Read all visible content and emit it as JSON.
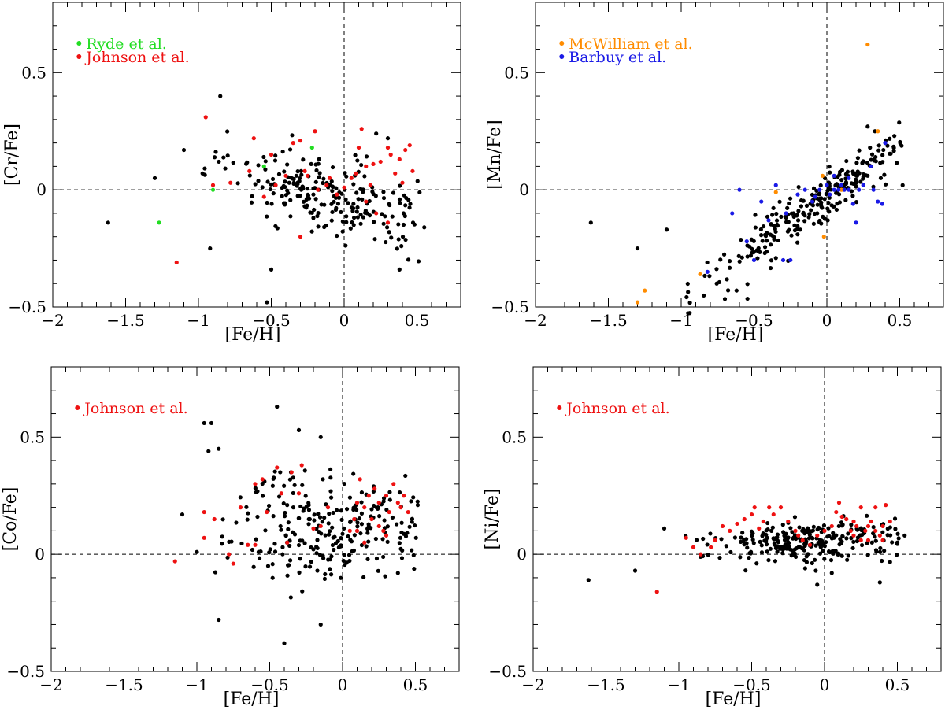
{
  "colors": {
    "axes": "#000000",
    "field_stars": "#000000",
    "ryde": "#22dd22",
    "johnson": "#ee1111",
    "mcwilliam": "#ff8c00",
    "barbuy": "#1a1ae6"
  },
  "chart_data": [
    {
      "type": "scatter",
      "panel": "top-left",
      "xlabel": "[Fe/H]",
      "ylabel": "[Cr/Fe]",
      "xlim": [
        -2.0,
        0.8
      ],
      "ylim": [
        -0.5,
        0.8
      ],
      "xticks": [
        -2,
        -1.5,
        -1,
        -0.5,
        0,
        0.5
      ],
      "xtick_labels": [
        "−2",
        "−1.5",
        "−1",
        "−0.5",
        "0",
        "0.5"
      ],
      "yticks": [
        -0.5,
        0,
        0.5
      ],
      "ytick_labels": [
        "−0.5",
        "0",
        "0.5"
      ],
      "reference_lines": {
        "x": 0,
        "y": 0
      },
      "legend": [
        "Ryde et al.",
        "Johnson et al."
      ],
      "series": [
        {
          "name": "",
          "color_key": "field_stars",
          "seed": 11,
          "n": 230,
          "x_center": -0.1,
          "x_spread": 0.34,
          "y_base": -0.04,
          "y_slope": -0.2,
          "y_spread": 0.085,
          "extra": [
            [
              -1.62,
              -0.14
            ],
            [
              -1.3,
              0.05
            ],
            [
              -1.1,
              0.17
            ],
            [
              -0.92,
              -0.25
            ],
            [
              -0.85,
              0.4
            ],
            [
              -0.5,
              -0.34
            ],
            [
              -0.53,
              -0.48
            ],
            [
              0.55,
              -0.16
            ],
            [
              0.38,
              -0.34
            ],
            [
              -0.86,
              0.12
            ],
            [
              0.22,
              0.24
            ],
            [
              0.3,
              0.22
            ]
          ]
        },
        {
          "name": "Ryde et al.",
          "color_key": "ryde",
          "points": [
            [
              -1.27,
              -0.14
            ],
            [
              -0.9,
              0.0
            ],
            [
              -0.22,
              0.18
            ],
            [
              -0.55,
              0.1
            ]
          ]
        },
        {
          "name": "Johnson et al.",
          "color_key": "johnson",
          "points": [
            [
              -1.15,
              -0.31
            ],
            [
              -0.95,
              0.31
            ],
            [
              -0.9,
              0.02
            ],
            [
              -0.78,
              0.03
            ],
            [
              -0.65,
              0.08
            ],
            [
              -0.62,
              0.22
            ],
            [
              -0.55,
              -0.03
            ],
            [
              -0.5,
              0.15
            ],
            [
              -0.47,
              0.02
            ],
            [
              -0.4,
              0.06
            ],
            [
              -0.35,
              0.2
            ],
            [
              -0.3,
              -0.2
            ],
            [
              -0.3,
              0.21
            ],
            [
              -0.27,
              0.08
            ],
            [
              -0.25,
              0.06
            ],
            [
              -0.2,
              0.25
            ],
            [
              -0.18,
              0.0
            ],
            [
              -0.12,
              0.02
            ],
            [
              -0.05,
              -0.02
            ],
            [
              0.0,
              0.01
            ],
            [
              0.05,
              0.05
            ],
            [
              0.08,
              0.07
            ],
            [
              0.1,
              0.18
            ],
            [
              0.12,
              0.26
            ],
            [
              0.15,
              0.1
            ],
            [
              0.18,
              0.02
            ],
            [
              0.2,
              0.11
            ],
            [
              0.25,
              0.12
            ],
            [
              0.3,
              -0.14
            ],
            [
              0.32,
              0.15
            ],
            [
              0.35,
              0.07
            ],
            [
              0.38,
              0.13
            ],
            [
              0.4,
              0.03
            ],
            [
              0.42,
              0.17
            ],
            [
              0.45,
              0.19
            ],
            [
              0.47,
              0.08
            ],
            [
              0.3,
              0.18
            ],
            [
              0.22,
              -0.1
            ],
            [
              -0.1,
              0.05
            ],
            [
              0.15,
              -0.05
            ]
          ]
        }
      ]
    },
    {
      "type": "scatter",
      "panel": "top-right",
      "xlabel": "[Fe/H]",
      "ylabel": "[Mn/Fe]",
      "xlim": [
        -2.0,
        0.8
      ],
      "ylim": [
        -0.5,
        0.8
      ],
      "xticks": [
        -2,
        -1.5,
        -1,
        -0.5,
        0,
        0.5
      ],
      "xtick_labels": [
        "−2",
        "−1.5",
        "−1",
        "−0.5",
        "0",
        "0.5"
      ],
      "yticks": [
        -0.5,
        0,
        0.5
      ],
      "ytick_labels": [
        "−0.5",
        "0",
        "0.5"
      ],
      "reference_lines": {
        "x": 0,
        "y": 0
      },
      "legend": [
        "McWilliam et al.",
        "Barbuy et al."
      ],
      "series": [
        {
          "name": "",
          "color_key": "field_stars",
          "seed": 23,
          "n": 260,
          "x_center": -0.1,
          "x_spread": 0.34,
          "y_base": -0.02,
          "y_slope": 0.45,
          "y_spread": 0.055,
          "extra": [
            [
              -1.62,
              -0.14
            ],
            [
              -1.3,
              -0.25
            ],
            [
              -1.1,
              -0.17
            ],
            [
              -0.62,
              -0.43
            ],
            [
              0.52,
              0.02
            ],
            [
              0.28,
              0.27
            ],
            [
              0.33,
              0.25
            ],
            [
              0.37,
              0.05
            ]
          ]
        },
        {
          "name": "McWilliam et al.",
          "color_key": "mcwilliam",
          "points": [
            [
              -1.3,
              -0.48
            ],
            [
              -1.25,
              -0.43
            ],
            [
              -0.87,
              -0.36
            ],
            [
              -0.35,
              -0.01
            ],
            [
              -0.03,
              0.06
            ],
            [
              -0.02,
              -0.2
            ],
            [
              0.28,
              0.62
            ],
            [
              0.35,
              0.25
            ],
            [
              0.1,
              0.0
            ]
          ]
        },
        {
          "name": "Barbuy et al.",
          "color_key": "barbuy",
          "points": [
            [
              -0.82,
              -0.35
            ],
            [
              -0.65,
              -0.1
            ],
            [
              -0.6,
              0.0
            ],
            [
              -0.55,
              -0.22
            ],
            [
              -0.5,
              -0.3
            ],
            [
              -0.45,
              -0.05
            ],
            [
              -0.4,
              -0.13
            ],
            [
              -0.35,
              0.02
            ],
            [
              -0.3,
              -0.3
            ],
            [
              -0.28,
              -0.1
            ],
            [
              -0.25,
              -0.3
            ],
            [
              -0.2,
              -0.02
            ],
            [
              -0.15,
              0.0
            ],
            [
              -0.1,
              -0.05
            ],
            [
              -0.05,
              0.0
            ],
            [
              0.0,
              0.02
            ],
            [
              0.02,
              -0.02
            ],
            [
              0.05,
              0.0
            ],
            [
              0.08,
              0.0
            ],
            [
              0.1,
              0.02
            ],
            [
              0.12,
              0.0
            ],
            [
              0.15,
              0.0
            ],
            [
              0.18,
              -0.06
            ],
            [
              0.2,
              -0.14
            ],
            [
              0.22,
              0.0
            ],
            [
              0.25,
              0.02
            ],
            [
              0.3,
              0.1
            ],
            [
              0.32,
              0.0
            ],
            [
              0.35,
              -0.05
            ],
            [
              0.38,
              -0.06
            ],
            [
              0.4,
              0.2
            ],
            [
              0.05,
              0.06
            ],
            [
              -0.08,
              -0.03
            ],
            [
              0.15,
              0.05
            ]
          ]
        }
      ]
    },
    {
      "type": "scatter",
      "panel": "bottom-left",
      "xlabel": "[Fe/H]",
      "ylabel": "[Co/Fe]",
      "xlim": [
        -2.0,
        0.8
      ],
      "ylim": [
        -0.5,
        0.8
      ],
      "xticks": [
        -2,
        -1.5,
        -1,
        -0.5,
        0,
        0.5
      ],
      "xtick_labels": [
        "−2",
        "−1.5",
        "−1",
        "−0.5",
        "0",
        "0.5"
      ],
      "yticks": [
        -0.5,
        0,
        0.5
      ],
      "ytick_labels": [
        "−0.5",
        "0",
        "0.5"
      ],
      "reference_lines": {
        "x": 0,
        "y": 0
      },
      "legend": [
        "Johnson et al."
      ],
      "series": [
        {
          "name": "",
          "color_key": "field_stars",
          "seed": 37,
          "n": 250,
          "x_center": -0.1,
          "x_spread": 0.34,
          "y_base": 0.12,
          "y_slope": 0.05,
          "y_spread": 0.12,
          "extra": [
            [
              -0.95,
              0.56
            ],
            [
              -0.9,
              0.56
            ],
            [
              -0.92,
              0.44
            ],
            [
              -0.85,
              0.45
            ],
            [
              -0.45,
              0.63
            ],
            [
              -0.3,
              0.53
            ],
            [
              -0.15,
              0.5
            ],
            [
              -0.85,
              -0.28
            ],
            [
              -0.4,
              -0.38
            ],
            [
              -0.15,
              -0.3
            ],
            [
              -1.1,
              0.17
            ],
            [
              -1.0,
              0.01
            ],
            [
              0.38,
              -0.08
            ]
          ]
        },
        {
          "name": "Johnson et al.",
          "color_key": "johnson",
          "points": [
            [
              -1.15,
              -0.03
            ],
            [
              -0.95,
              0.07
            ],
            [
              -0.95,
              0.18
            ],
            [
              -0.88,
              0.15
            ],
            [
              -0.78,
              0.0
            ],
            [
              -0.75,
              -0.04
            ],
            [
              -0.7,
              0.2
            ],
            [
              -0.65,
              0.04
            ],
            [
              -0.6,
              0.04
            ],
            [
              -0.6,
              0.3
            ],
            [
              -0.55,
              0.32
            ],
            [
              -0.52,
              0.18
            ],
            [
              -0.45,
              0.37
            ],
            [
              -0.42,
              0.26
            ],
            [
              -0.38,
              0.05
            ],
            [
              -0.35,
              0.35
            ],
            [
              -0.3,
              0.26
            ],
            [
              -0.28,
              0.38
            ],
            [
              -0.2,
              0.11
            ],
            [
              -0.15,
              0.12
            ],
            [
              -0.1,
              0.2
            ],
            [
              0.05,
              0.1
            ],
            [
              0.08,
              0.15
            ],
            [
              0.1,
              0.22
            ],
            [
              0.12,
              0.32
            ],
            [
              0.15,
              0.2
            ],
            [
              0.18,
              0.25
            ],
            [
              0.2,
              0.15
            ],
            [
              0.22,
              0.28
            ],
            [
              0.25,
              0.22
            ],
            [
              0.28,
              0.1
            ],
            [
              0.3,
              0.25
            ],
            [
              0.32,
              0.18
            ],
            [
              0.35,
              0.3
            ],
            [
              0.38,
              0.22
            ],
            [
              0.4,
              0.2
            ],
            [
              0.42,
              0.25
            ],
            [
              0.45,
              0.18
            ],
            [
              0.3,
              0.08
            ],
            [
              0.25,
              0.12
            ],
            [
              0.15,
              0.05
            ],
            [
              0.1,
              0.1
            ]
          ]
        }
      ]
    },
    {
      "type": "scatter",
      "panel": "bottom-right",
      "xlabel": "[Fe/H]",
      "ylabel": "[Ni/Fe]",
      "xlim": [
        -2.0,
        0.8
      ],
      "ylim": [
        -0.5,
        0.8
      ],
      "xticks": [
        -2,
        -1.5,
        -1,
        -0.5,
        0,
        0.5
      ],
      "xtick_labels": [
        "−2",
        "−1.5",
        "−1",
        "−0.5",
        "0",
        "0.5"
      ],
      "yticks": [
        -0.5,
        0,
        0.5
      ],
      "ytick_labels": [
        "−0.5",
        "0",
        "0.5"
      ],
      "reference_lines": {
        "x": 0,
        "y": 0
      },
      "legend": [
        "Johnson et al."
      ],
      "series": [
        {
          "name": "",
          "color_key": "field_stars",
          "seed": 53,
          "n": 260,
          "x_center": -0.1,
          "x_spread": 0.34,
          "y_base": 0.06,
          "y_slope": 0.04,
          "y_spread": 0.045,
          "extra": [
            [
              -1.62,
              -0.11
            ],
            [
              -1.3,
              -0.07
            ],
            [
              -1.1,
              0.11
            ],
            [
              -0.05,
              -0.13
            ],
            [
              0.05,
              -0.08
            ],
            [
              0.38,
              -0.12
            ],
            [
              0.55,
              0.08
            ],
            [
              0.5,
              0.05
            ]
          ]
        },
        {
          "name": "Johnson et al.",
          "color_key": "johnson",
          "points": [
            [
              -1.15,
              -0.16
            ],
            [
              -0.95,
              0.07
            ],
            [
              -0.9,
              0.03
            ],
            [
              -0.85,
              0.0
            ],
            [
              -0.78,
              0.03
            ],
            [
              -0.75,
              0.06
            ],
            [
              -0.7,
              0.12
            ],
            [
              -0.65,
              0.1
            ],
            [
              -0.6,
              0.13
            ],
            [
              -0.55,
              0.15
            ],
            [
              -0.5,
              0.17
            ],
            [
              -0.48,
              0.2
            ],
            [
              -0.45,
              0.11
            ],
            [
              -0.42,
              0.14
            ],
            [
              -0.38,
              0.2
            ],
            [
              -0.35,
              0.17
            ],
            [
              -0.3,
              0.2
            ],
            [
              -0.25,
              0.14
            ],
            [
              -0.2,
              0.1
            ],
            [
              -0.18,
              0.08
            ],
            [
              -0.15,
              0.06
            ],
            [
              -0.1,
              0.04
            ],
            [
              -0.05,
              0.08
            ],
            [
              0.0,
              0.1
            ],
            [
              0.05,
              0.12
            ],
            [
              0.08,
              0.18
            ],
            [
              0.1,
              0.22
            ],
            [
              0.12,
              0.16
            ],
            [
              0.15,
              0.15
            ],
            [
              0.18,
              0.1
            ],
            [
              0.2,
              0.08
            ],
            [
              0.22,
              0.12
            ],
            [
              0.25,
              0.2
            ],
            [
              0.28,
              0.1
            ],
            [
              0.3,
              0.06
            ],
            [
              0.32,
              0.14
            ],
            [
              0.35,
              0.2
            ],
            [
              0.38,
              0.08
            ],
            [
              0.4,
              0.12
            ],
            [
              0.42,
              0.21
            ],
            [
              0.45,
              0.14
            ],
            [
              0.3,
              0.12
            ],
            [
              0.25,
              0.06
            ],
            [
              0.2,
              0.14
            ],
            [
              0.35,
              0.1
            ],
            [
              0.4,
              0.06
            ]
          ]
        }
      ]
    }
  ]
}
